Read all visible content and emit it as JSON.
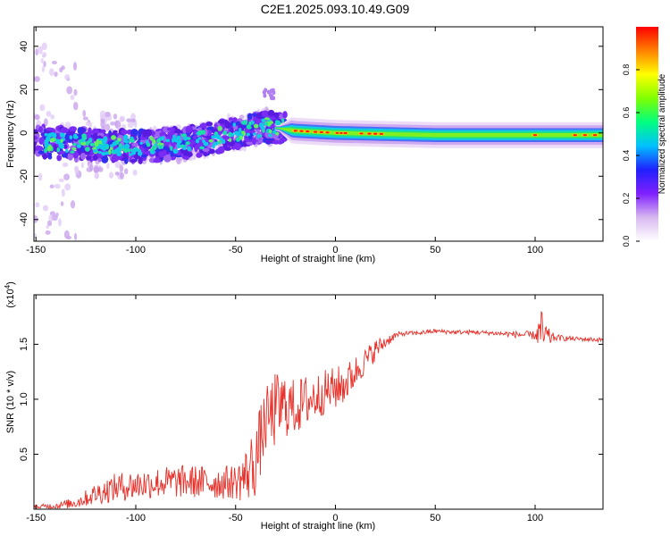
{
  "title": "C2E1.2025.093.10.49.G09",
  "chart_data": [
    {
      "type": "heatmap",
      "title": "C2E1.2025.093.10.49.G09",
      "xlabel": "Height of straight line (km)",
      "ylabel": "Frequency (Hz)",
      "xlim": [
        -151,
        134
      ],
      "ylim": [
        -50,
        49
      ],
      "xticks": [
        -150,
        -100,
        -50,
        0,
        50,
        100
      ],
      "yticks": [
        -40,
        -20,
        0,
        20,
        40
      ],
      "colorbar": {
        "label": "Normalized spectral amplitude",
        "range": [
          0,
          1
        ],
        "ticks": [
          "0.0",
          "0.2",
          "0.4",
          "0.6",
          "0.8"
        ],
        "tick_values": [
          0,
          0.2,
          0.4,
          0.6,
          0.8
        ],
        "colors": [
          "#ffffff",
          "#d8b8f0",
          "#8020ff",
          "#2020ff",
          "#00c0ff",
          "#00ff80",
          "#80ff00",
          "#ffff00",
          "#ff8000",
          "#ff0000"
        ]
      },
      "ridge": [
        {
          "x": -150,
          "y": -4
        },
        {
          "x": -130,
          "y": -5
        },
        {
          "x": -110,
          "y": -6
        },
        {
          "x": -90,
          "y": -6
        },
        {
          "x": -70,
          "y": -4
        },
        {
          "x": -50,
          "y": 0
        },
        {
          "x": -35,
          "y": 3
        },
        {
          "x": -20,
          "y": 1
        },
        {
          "x": 0,
          "y": 0
        },
        {
          "x": 50,
          "y": -1
        },
        {
          "x": 100,
          "y": -1
        },
        {
          "x": 134,
          "y": -1
        }
      ]
    },
    {
      "type": "line",
      "xlabel": "Height of straight line (km)",
      "ylabel": "SNR (10 * v/v)",
      "y_multiplier": "(x10",
      "y_multiplier_exp": "4",
      "y_multiplier_close": ")",
      "xlim": [
        -151,
        134
      ],
      "ylim": [
        0,
        1.95
      ],
      "xticks": [
        -150,
        -100,
        -50,
        0,
        50,
        100
      ],
      "yticks": [
        0.5,
        1.0,
        1.5
      ],
      "ytick_labels": [
        "0.5",
        "1.0",
        "1.5"
      ],
      "color": "#e8312a",
      "series": [
        {
          "x": [
            -151,
            -140,
            -130,
            -120,
            -110,
            -100,
            -90,
            -80,
            -70,
            -60,
            -50,
            -45,
            -40,
            -35,
            -30,
            -25,
            -20,
            -15,
            -10,
            -5,
            0,
            5,
            10,
            15,
            20,
            25,
            30,
            35,
            40,
            45,
            50,
            60,
            70,
            80,
            90,
            100,
            103,
            105,
            107,
            110,
            120,
            134
          ],
          "y": [
            0.02,
            0.03,
            0.06,
            0.14,
            0.2,
            0.22,
            0.24,
            0.25,
            0.25,
            0.24,
            0.25,
            0.3,
            0.45,
            0.8,
            0.9,
            0.95,
            0.92,
            0.98,
            1.02,
            1.07,
            1.1,
            1.14,
            1.25,
            1.35,
            1.45,
            1.52,
            1.58,
            1.6,
            1.6,
            1.61,
            1.62,
            1.61,
            1.61,
            1.6,
            1.59,
            1.58,
            1.62,
            1.55,
            1.56,
            1.56,
            1.55,
            1.54
          ],
          "noise": [
            0.02,
            0.03,
            0.05,
            0.1,
            0.13,
            0.14,
            0.14,
            0.15,
            0.15,
            0.15,
            0.16,
            0.25,
            0.35,
            0.3,
            0.35,
            0.3,
            0.25,
            0.25,
            0.22,
            0.2,
            0.2,
            0.18,
            0.15,
            0.12,
            0.1,
            0.06,
            0.03,
            0.02,
            0.02,
            0.02,
            0.02,
            0.02,
            0.02,
            0.02,
            0.03,
            0.04,
            0.2,
            0.2,
            0.08,
            0.03,
            0.02,
            0.02
          ]
        }
      ]
    }
  ]
}
